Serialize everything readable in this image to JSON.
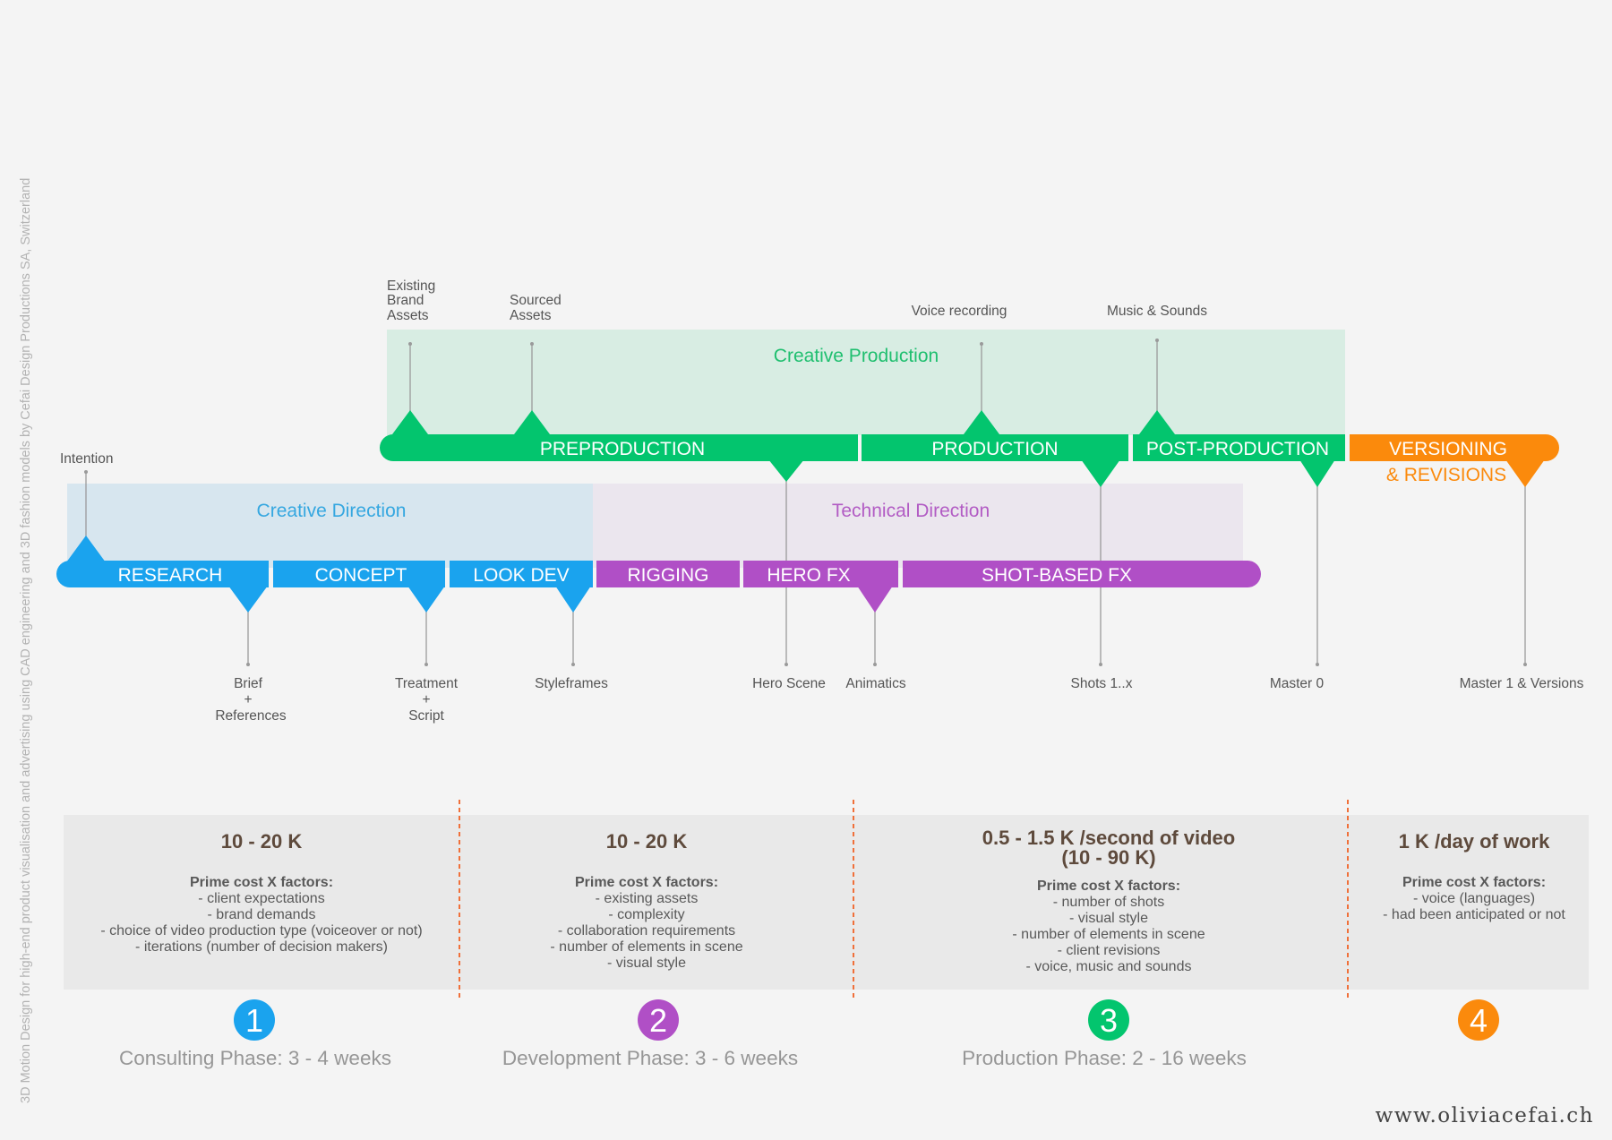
{
  "side_note": "3D Motion Design for high-end product visualisation and advertising using CAD engineering and 3D fashion models by Cefai Design Productions SA, Switzerland",
  "website": "www.oliviacefai.ch",
  "colors": {
    "blue": "#1aa3ee",
    "purple": "#b04fc6",
    "green": "#03c56e",
    "orange": "#fb8a0c"
  },
  "bands": {
    "creative_production": "Creative Production",
    "creative_direction": "Creative Direction",
    "technical_direction": "Technical Direction"
  },
  "top_bar": {
    "preproduction": "PREPRODUCTION",
    "production": "PRODUCTION",
    "post_production": "POST-PRODUCTION",
    "versioning_line1": "VERSIONING",
    "versioning_line2": "& REVISIONS"
  },
  "bottom_bar": {
    "research": "RESEARCH",
    "concept": "CONCEPT",
    "look_dev": "LOOK DEV",
    "rigging": "RIGGING",
    "hero_fx": "HERO FX",
    "shot_based_fx": "SHOT-BASED FX"
  },
  "inputs": {
    "intention": "Intention",
    "existing_brand_assets": [
      "Existing",
      "Brand",
      "Assets"
    ],
    "sourced_assets": [
      "Sourced",
      "Assets"
    ],
    "voice_recording": "Voice recording",
    "music_sounds": "Music & Sounds"
  },
  "deliverables": {
    "brief": [
      "Brief",
      "+",
      "References"
    ],
    "treatment": [
      "Treatment",
      "+",
      "Script"
    ],
    "styleframes": "Styleframes",
    "hero_scene": "Hero Scene",
    "animatics": "Animatics",
    "shots": "Shots 1..x",
    "master0": "Master 0",
    "master1": "Master 1 & Versions"
  },
  "pricing": [
    {
      "price": "10 - 20 K",
      "factors_title": "Prime cost X factors:",
      "factors": [
        "- client expectations",
        "- brand demands",
        "- choice of video production type (voiceover or not)",
        "- iterations (number of decision makers)"
      ]
    },
    {
      "price": "10 - 20 K",
      "factors_title": "Prime cost X factors:",
      "factors": [
        "- existing assets",
        "- complexity",
        "- collaboration requirements",
        "- number of elements in scene",
        "- visual style"
      ]
    },
    {
      "price": "0.5 - 1.5 K /second of video",
      "price2": "(10 - 90 K)",
      "factors_title": "Prime cost X factors:",
      "factors": [
        "- number of shots",
        "- visual style",
        "- number of elements in scene",
        "- client revisions",
        "- voice, music and sounds"
      ]
    },
    {
      "price": "1 K /day of work",
      "factors_title": "Prime cost X factors:",
      "factors": [
        "- voice (languages)",
        "- had been anticipated or not"
      ]
    }
  ],
  "phases": [
    {
      "number": "1",
      "label": "Consulting Phase: 3 - 4 weeks"
    },
    {
      "number": "2",
      "label": "Development Phase: 3 - 6 weeks"
    },
    {
      "number": "3",
      "label": "Production Phase: 2 - 16 weeks"
    },
    {
      "number": "4",
      "label": ""
    }
  ]
}
